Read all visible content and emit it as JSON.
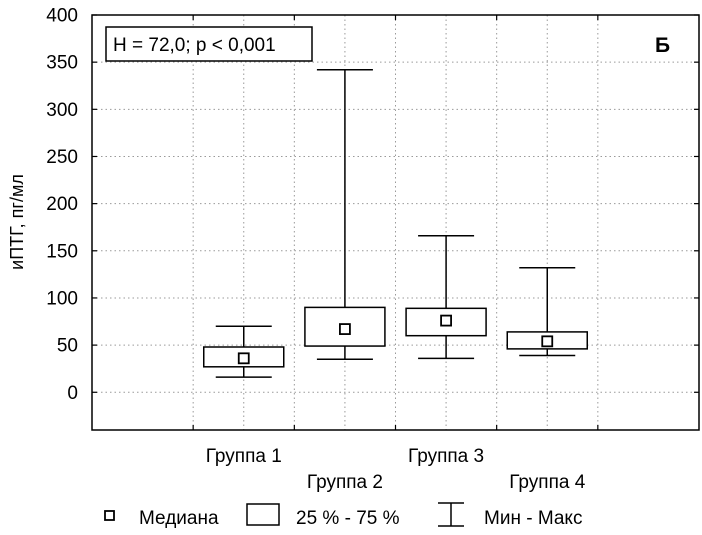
{
  "chart_data": {
    "type": "boxplot",
    "panel_label": "Б",
    "annotation": "H = 72,0; p < 0,001",
    "ylabel": "иПТГ, пг/мл",
    "ylim": [
      -40,
      400
    ],
    "yticks": [
      0,
      50,
      100,
      150,
      200,
      250,
      300,
      350,
      400
    ],
    "grid": true,
    "categories": [
      "Группа 1",
      "Группа 2",
      "Группа 3",
      "Группа 4"
    ],
    "groups": [
      {
        "name": "Группа 1",
        "min": 16,
        "q1": 27,
        "median": 36,
        "q3": 48,
        "max": 70
      },
      {
        "name": "Группа 2",
        "min": 35,
        "q1": 49,
        "median": 67,
        "q3": 90,
        "max": 342
      },
      {
        "name": "Группа 3",
        "min": 36,
        "q1": 60,
        "median": 76,
        "q3": 89,
        "max": 166
      },
      {
        "name": "Группа 4",
        "min": 39,
        "q1": 46,
        "median": 54,
        "q3": 64,
        "max": 132
      }
    ],
    "legend": {
      "median": "Медиана",
      "box": "25 % - 75 %",
      "whisker": "Мин - Макс"
    }
  }
}
